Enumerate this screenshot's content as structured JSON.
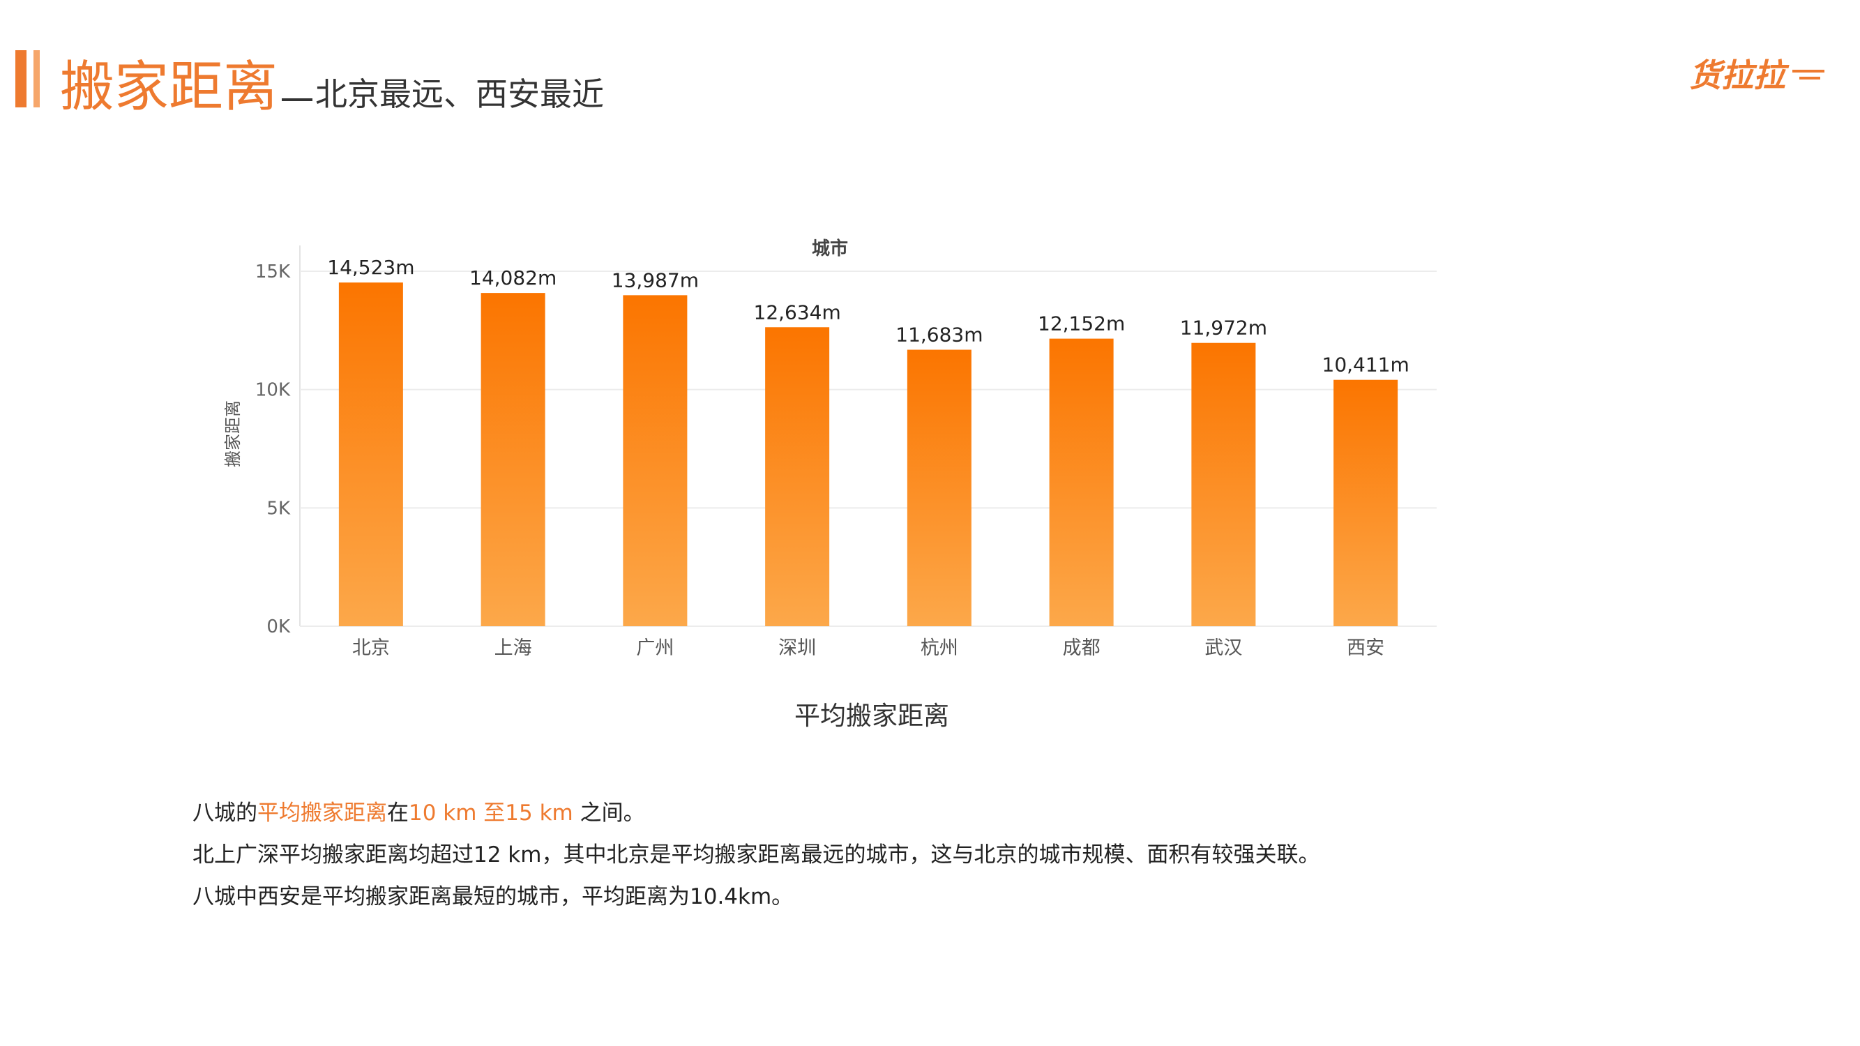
{
  "header": {
    "title": "搬家距离",
    "subtitle": "北京最远、西安最近",
    "logo_text": "货拉拉"
  },
  "colors": {
    "accent": "#ee7a2f",
    "bar_top": "#fb7500",
    "bar_bottom": "#fca84a"
  },
  "chart_data": {
    "type": "bar",
    "title": "城市",
    "caption": "平均搬家距离",
    "xlabel": "城市",
    "ylabel": "搬家距离",
    "categories": [
      "北京",
      "上海",
      "广州",
      "深圳",
      "杭州",
      "成都",
      "武汉",
      "西安"
    ],
    "values": [
      14523,
      14082,
      13987,
      12634,
      11683,
      12152,
      11972,
      10411
    ],
    "data_labels": [
      "14,523m",
      "14,082m",
      "13,987m",
      "12,634m",
      "11,683m",
      "12,152m",
      "11,972m",
      "10,411m"
    ],
    "yticks": [
      0,
      5000,
      10000,
      15000
    ],
    "ytick_labels": [
      "0K",
      "5K",
      "10K",
      "15K"
    ],
    "ylim": [
      0,
      15500
    ],
    "grid": true
  },
  "text": {
    "line1": {
      "p1": "八城的",
      "h1": "平均搬家距离",
      "p2": "在",
      "h2": "10 km 至15 km",
      "p3": " 之间。"
    },
    "line2": "北上广深平均搬家距离均超过12 km，其中北京是平均搬家距离最远的城市，这与北京的城市规模、面积有较强关联。",
    "line3": "八城中西安是平均搬家距离最短的城市，平均距离为10.4km。"
  }
}
